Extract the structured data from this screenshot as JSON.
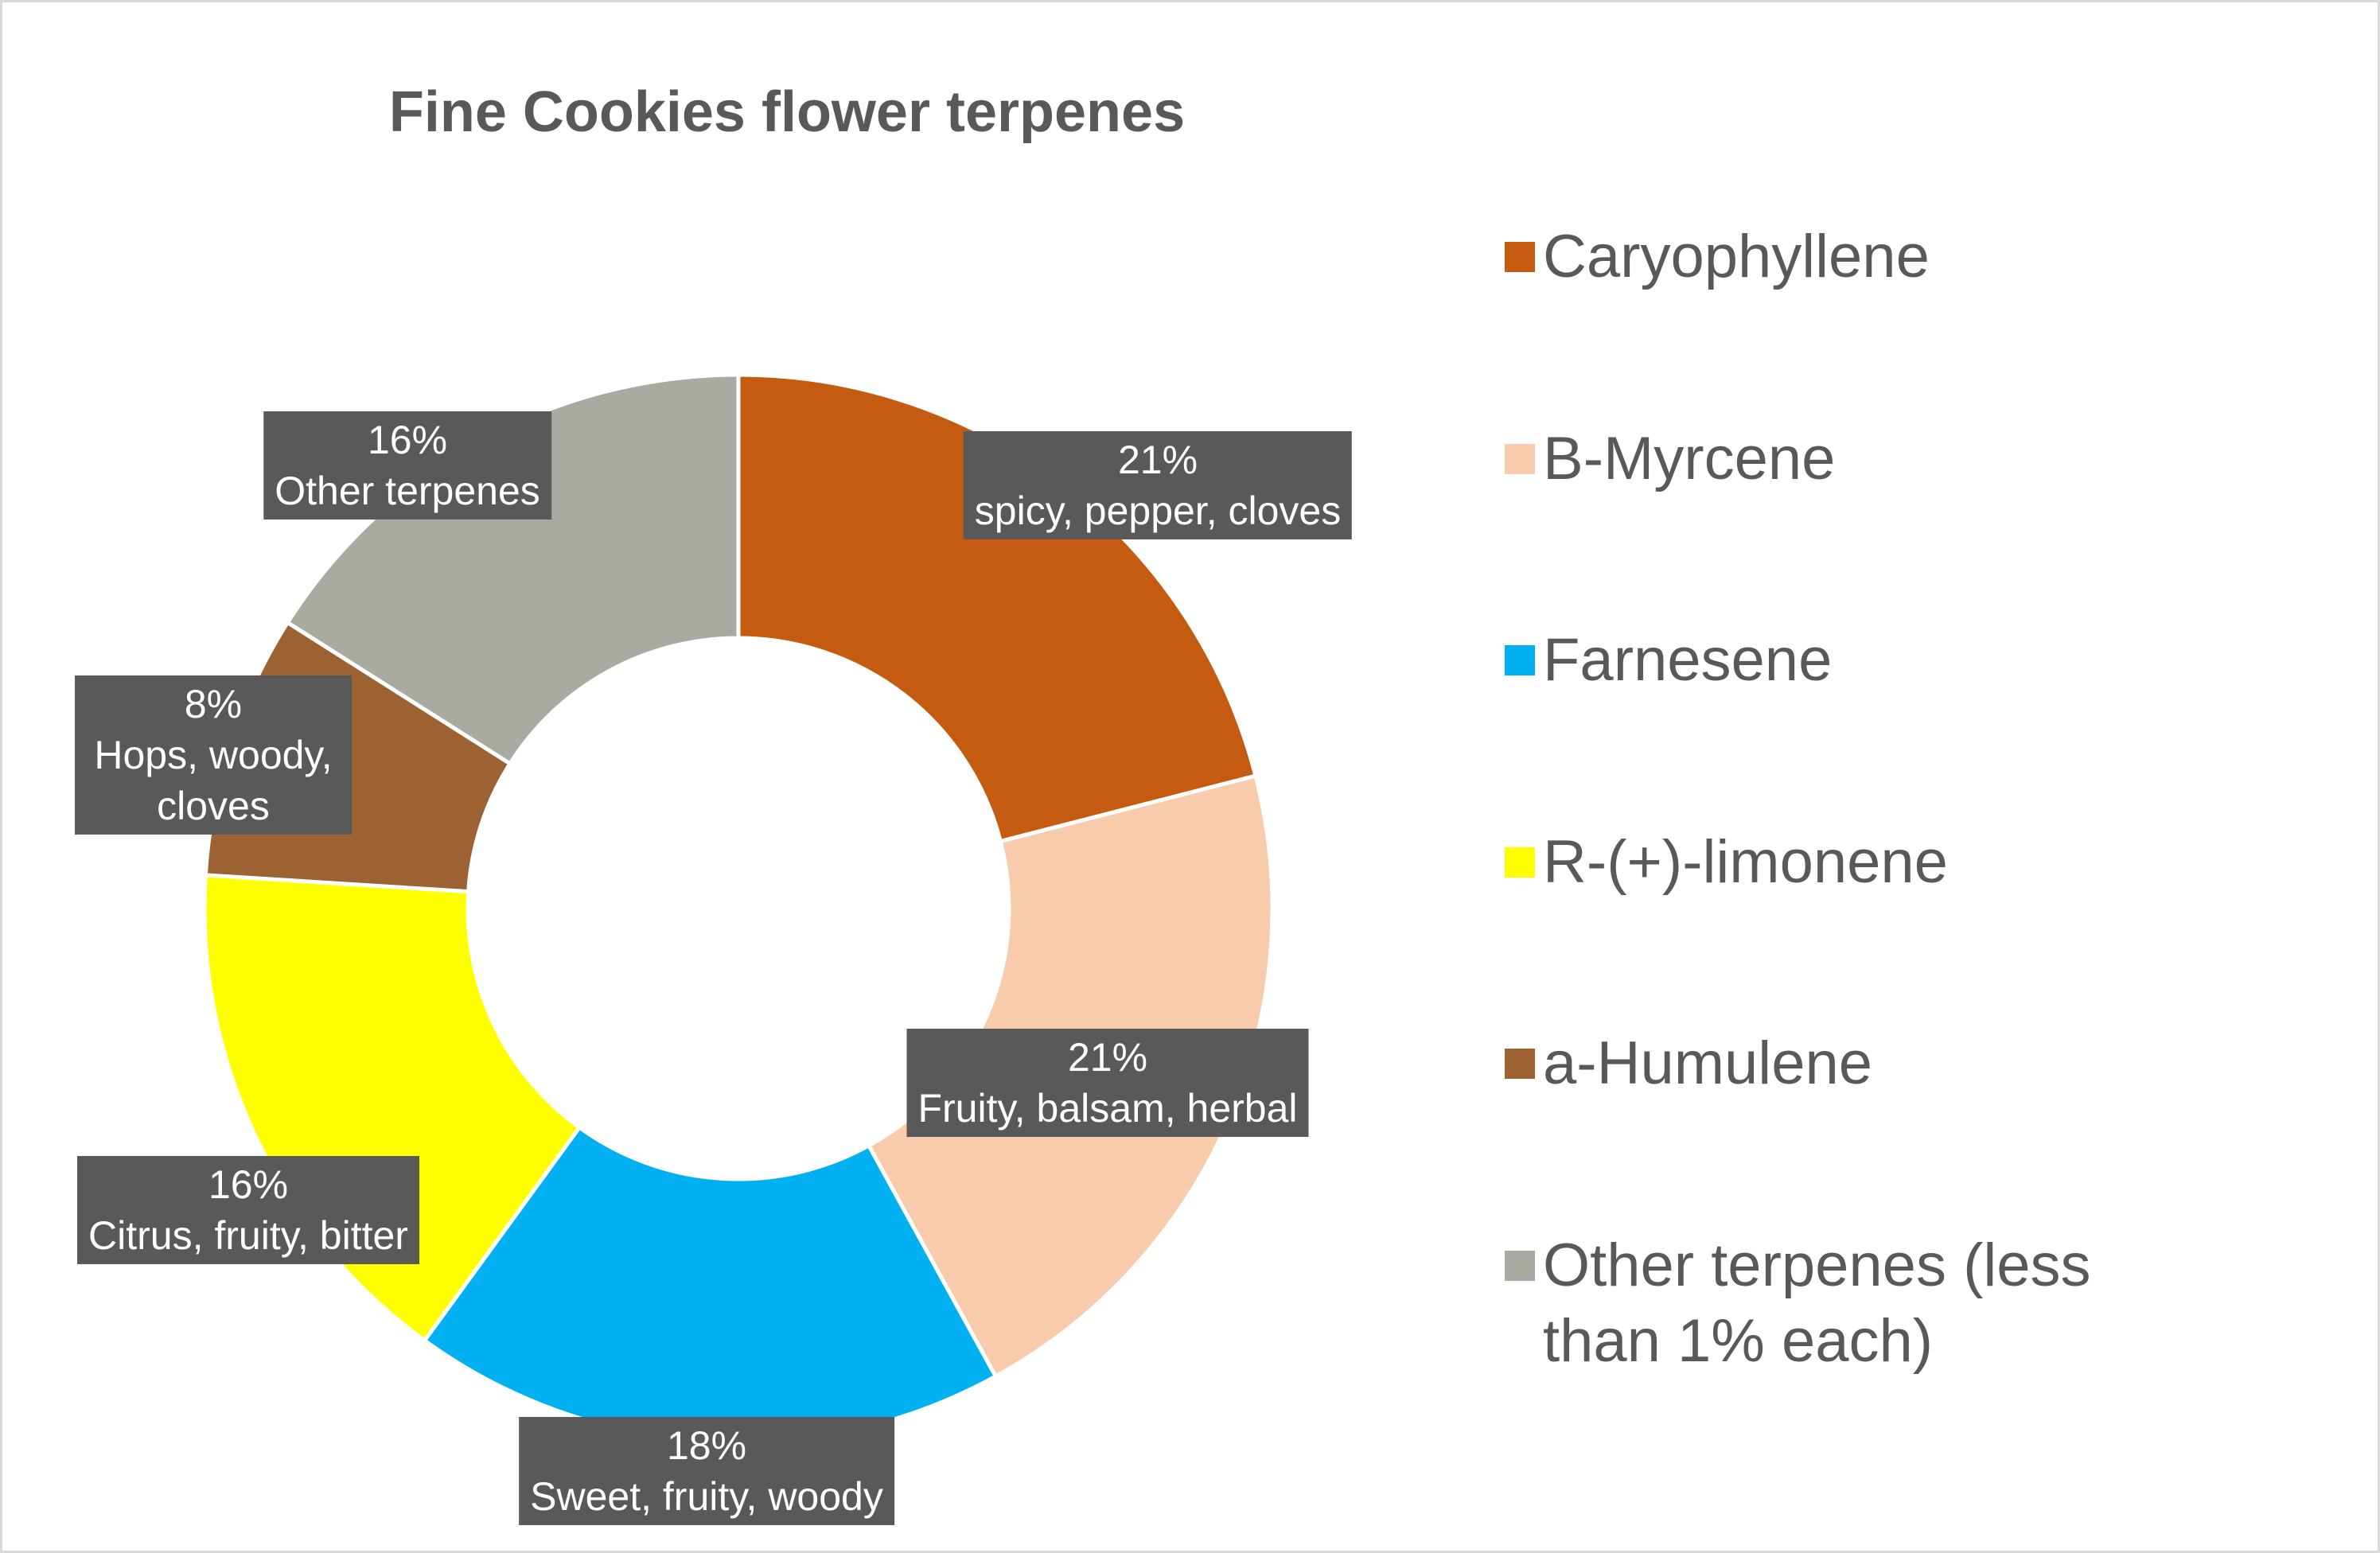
{
  "chart_data": {
    "type": "donut",
    "title": "Fine Cookies flower terpenes",
    "categories": [
      "Caryophyllene",
      "B-Myrcene",
      "Farnesene",
      "R-(+)-limonene",
      "a-Humulene",
      "Other terpenes (less than 1% each)"
    ],
    "values": [
      21,
      21,
      18,
      16,
      8,
      16
    ],
    "value_labels": [
      "21%",
      "21%",
      "18%",
      "16%",
      "8%",
      "16%"
    ],
    "descriptions": [
      "spicy, pepper, cloves",
      "Fruity, balsam, herbal",
      "Sweet, fruity, woody",
      "Citrus, fruity, bitter",
      "Hops, woody, cloves",
      "Other terpenes"
    ],
    "colors": [
      "#c55a11",
      "#f8cbad",
      "#00b0f0",
      "#ffff00",
      "#9c6232",
      "#a9aaa2"
    ],
    "legend": "right"
  }
}
